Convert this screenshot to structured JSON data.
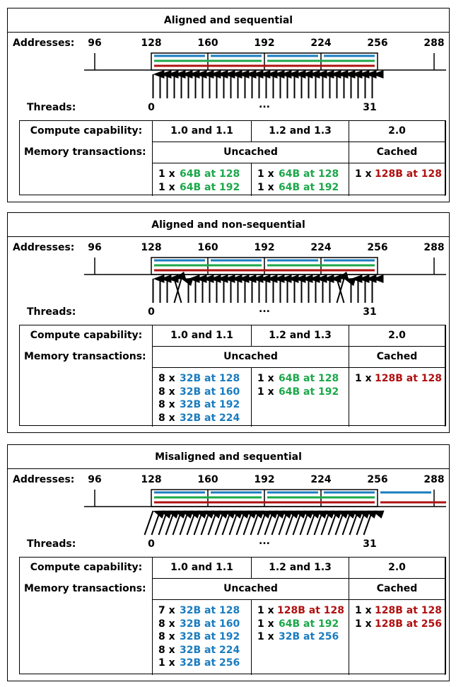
{
  "colors": {
    "blue": "#1a7cc0",
    "green": "#1ca84a",
    "red": "#b01010",
    "black": "#000000"
  },
  "common": {
    "addresses_label": "Addresses:",
    "threads_label": "Threads:",
    "addresses": [
      "96",
      "128",
      "160",
      "192",
      "224",
      "256",
      "288"
    ],
    "thread_first": "0",
    "thread_mid": "...",
    "thread_last": "31",
    "compute_capability_label": "Compute capability:",
    "memory_transactions_label": "Memory transactions:",
    "cc_10": "1.0 and 1.1",
    "cc_12": "1.2 and 1.3",
    "cc_20": "2.0",
    "uncached": "Uncached",
    "cached": "Cached"
  },
  "panels": [
    {
      "title": "Aligned and sequential",
      "pattern": "sequential",
      "col10": [
        {
          "count": "1 x",
          "text": "64B at 128",
          "color": "green"
        },
        {
          "count": "1 x",
          "text": "64B at 192",
          "color": "green"
        }
      ],
      "col12": [
        {
          "count": "1 x",
          "text": "64B at 128",
          "color": "green"
        },
        {
          "count": "1 x",
          "text": "64B at 192",
          "color": "green"
        }
      ],
      "col20": [
        {
          "count": "1 x",
          "text": "128B at 128",
          "color": "red"
        }
      ]
    },
    {
      "title": "Aligned and non-sequential",
      "pattern": "non-sequential",
      "col10": [
        {
          "count": "8 x",
          "text": "32B at 128",
          "color": "blue"
        },
        {
          "count": "8 x",
          "text": "32B at 160",
          "color": "blue"
        },
        {
          "count": "8 x",
          "text": "32B at 192",
          "color": "blue"
        },
        {
          "count": "8 x",
          "text": "32B at 224",
          "color": "blue"
        }
      ],
      "col12": [
        {
          "count": "1 x",
          "text": "64B at 128",
          "color": "green"
        },
        {
          "count": "1 x",
          "text": "64B at 192",
          "color": "green"
        }
      ],
      "col20": [
        {
          "count": "1 x",
          "text": "128B at 128",
          "color": "red"
        }
      ]
    },
    {
      "title": "Misaligned and sequential",
      "pattern": "misaligned",
      "col10": [
        {
          "count": "7 x",
          "text": "32B at 128",
          "color": "blue"
        },
        {
          "count": "8 x",
          "text": "32B at 160",
          "color": "blue"
        },
        {
          "count": "8 x",
          "text": "32B at 192",
          "color": "blue"
        },
        {
          "count": "8 x",
          "text": "32B at 224",
          "color": "blue"
        },
        {
          "count": "1 x",
          "text": "32B at 256",
          "color": "blue"
        }
      ],
      "col12": [
        {
          "count": "1 x",
          "text": "128B at 128",
          "color": "red"
        },
        {
          "count": "1 x",
          "text": "64B at 192",
          "color": "green"
        },
        {
          "count": "1 x",
          "text": "32B at 256",
          "color": "blue"
        }
      ],
      "col20": [
        {
          "count": "1 x",
          "text": "128B at 128",
          "color": "red"
        },
        {
          "count": "1 x",
          "text": "128B at 256",
          "color": "red"
        }
      ]
    }
  ]
}
